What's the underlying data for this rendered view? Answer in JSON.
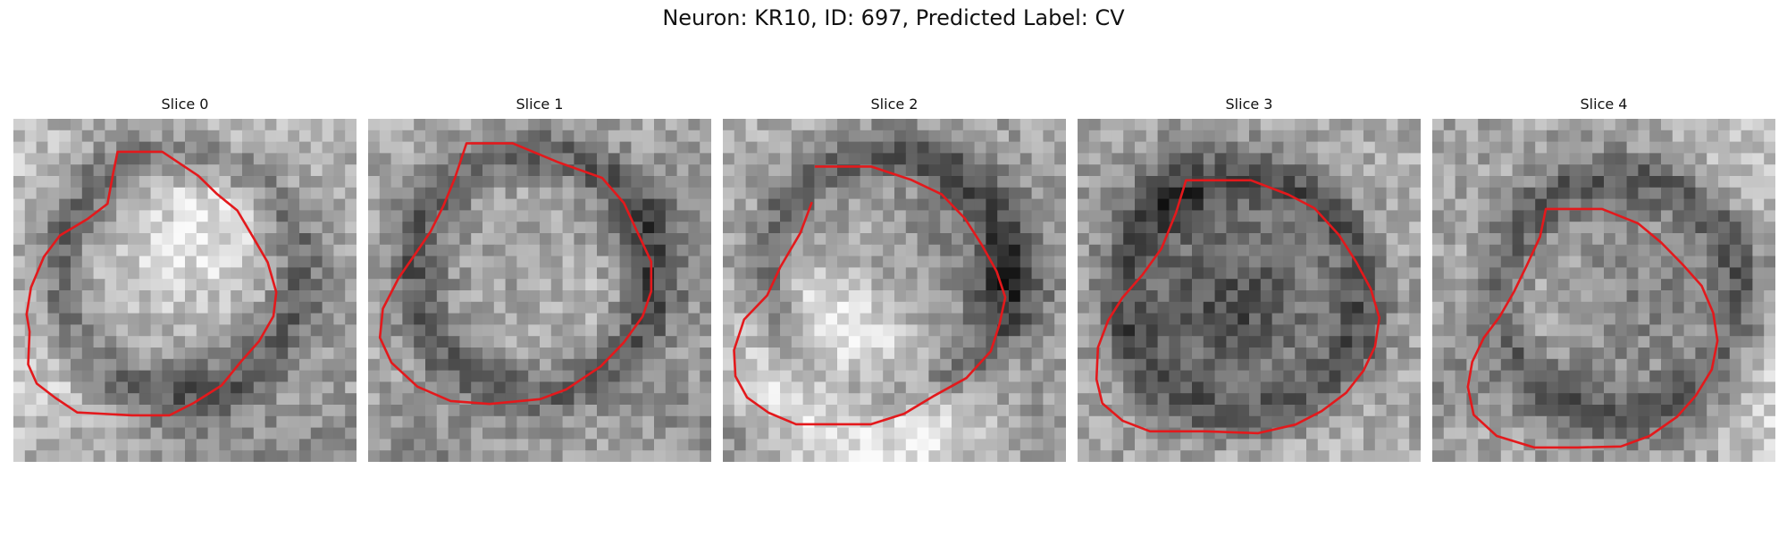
{
  "figure": {
    "title": "Neuron: KR10, ID: 697, Predicted Label: CV",
    "contour_color": "#e3191c"
  },
  "panels": [
    {
      "title": "Slice 0"
    },
    {
      "title": "Slice 1"
    },
    {
      "title": "Slice 2"
    },
    {
      "title": "Slice 3"
    },
    {
      "title": "Slice 4"
    }
  ]
}
